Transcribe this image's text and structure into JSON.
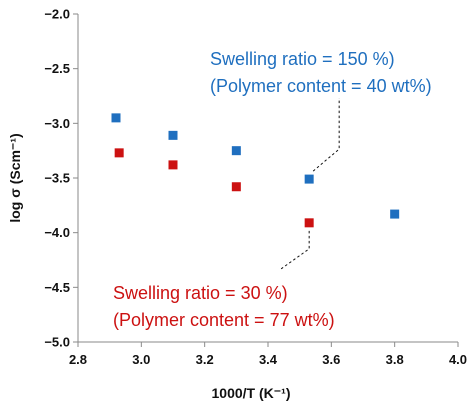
{
  "chart_data": {
    "type": "scatter",
    "xlabel": "1000/T (K⁻¹)",
    "ylabel": "log σ (Scm⁻¹)",
    "xlim": [
      2.8,
      4.0
    ],
    "ylim": [
      -5.0,
      -2.0
    ],
    "x_ticks": [
      "2.8",
      "3.0",
      "3.2",
      "3.4",
      "3.6",
      "3.8",
      "4.0"
    ],
    "y_ticks": [
      "−2.0",
      "−2.5",
      "−3.0",
      "−3.5",
      "−4.0",
      "−4.5",
      "−5.0"
    ],
    "grid": false,
    "series": [
      {
        "color": "#1f6fbf",
        "points": [
          {
            "x": 2.92,
            "y": -2.95
          },
          {
            "x": 3.1,
            "y": -3.11
          },
          {
            "x": 3.3,
            "y": -3.25
          },
          {
            "x": 3.53,
            "y": -3.51
          },
          {
            "x": 3.8,
            "y": -3.83
          }
        ]
      },
      {
        "color": "#cc1111",
        "points": [
          {
            "x": 2.93,
            "y": -3.27
          },
          {
            "x": 3.1,
            "y": -3.38
          },
          {
            "x": 3.3,
            "y": -3.58
          },
          {
            "x": 3.53,
            "y": -3.91
          }
        ]
      }
    ],
    "annotations": [
      {
        "line1": "Swelling ratio = 150 %)",
        "line2": "(Polymer content = 40 wt%)",
        "color": "#1f6fbf"
      },
      {
        "line1": "Swelling ratio = 30 %)",
        "line2": "(Polymer content = 77 wt%)",
        "color": "#cc1111"
      }
    ]
  }
}
